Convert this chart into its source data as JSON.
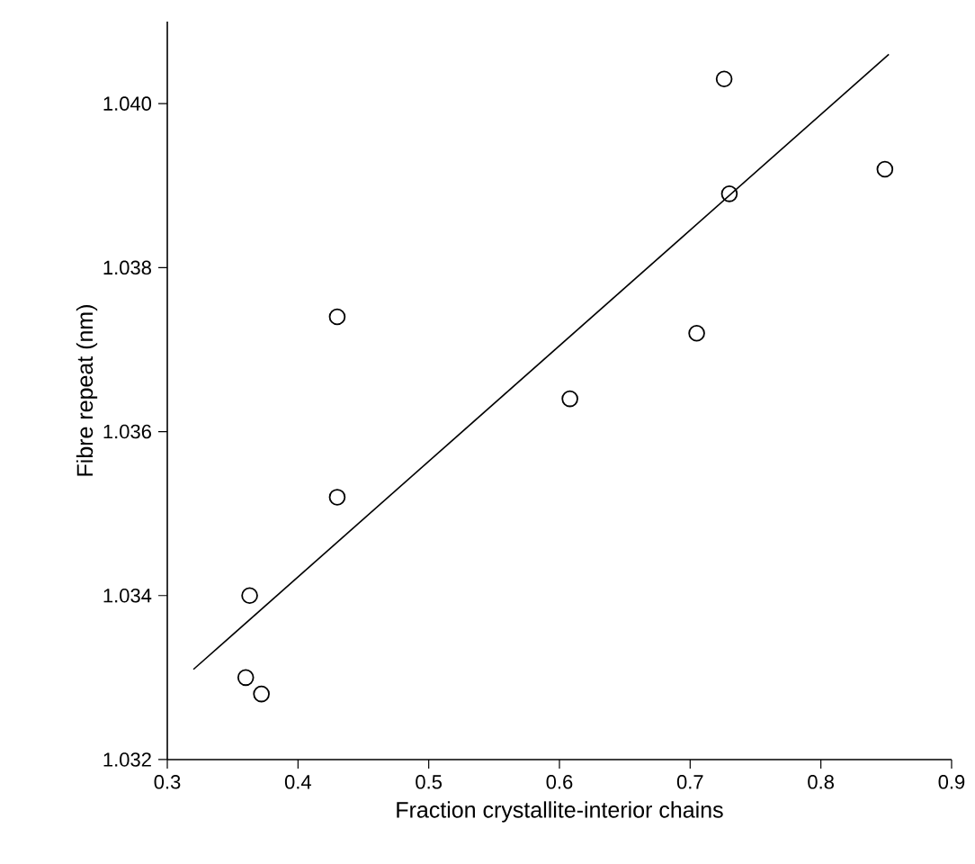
{
  "chart_data": {
    "type": "scatter",
    "xlabel": "Fraction crystallite-interior chains",
    "ylabel": "Fibre repeat (nm)",
    "xlim": [
      0.3,
      0.9
    ],
    "xticks": [
      0.3,
      0.4,
      0.5,
      0.6,
      0.7,
      0.8,
      0.9
    ],
    "ylim": [
      1.032,
      1.041
    ],
    "yticks": [
      {
        "value": 1.032,
        "label": "1.032"
      },
      {
        "value": 1.034,
        "label": "1.034"
      },
      {
        "value": 1.036,
        "label": "1.036"
      },
      {
        "value": 1.038,
        "label": "1.038"
      },
      {
        "value": 1.04,
        "label": "1.040"
      }
    ],
    "grid": false,
    "series": [
      {
        "marker": "circle",
        "color": "#000000",
        "x": [
          0.36,
          0.363,
          0.372,
          0.43,
          0.43,
          0.608,
          0.705,
          0.726,
          0.73,
          0.849
        ],
        "values": [
          1.033,
          1.034,
          1.0328,
          1.0352,
          1.0374,
          1.0364,
          1.0372,
          1.0403,
          1.0389,
          1.0392
        ]
      },
      {
        "type": "line",
        "marker": "none",
        "color": "#000000",
        "x": [
          0.32,
          0.852
        ],
        "values": [
          1.0331,
          1.0406
        ]
      }
    ]
  }
}
